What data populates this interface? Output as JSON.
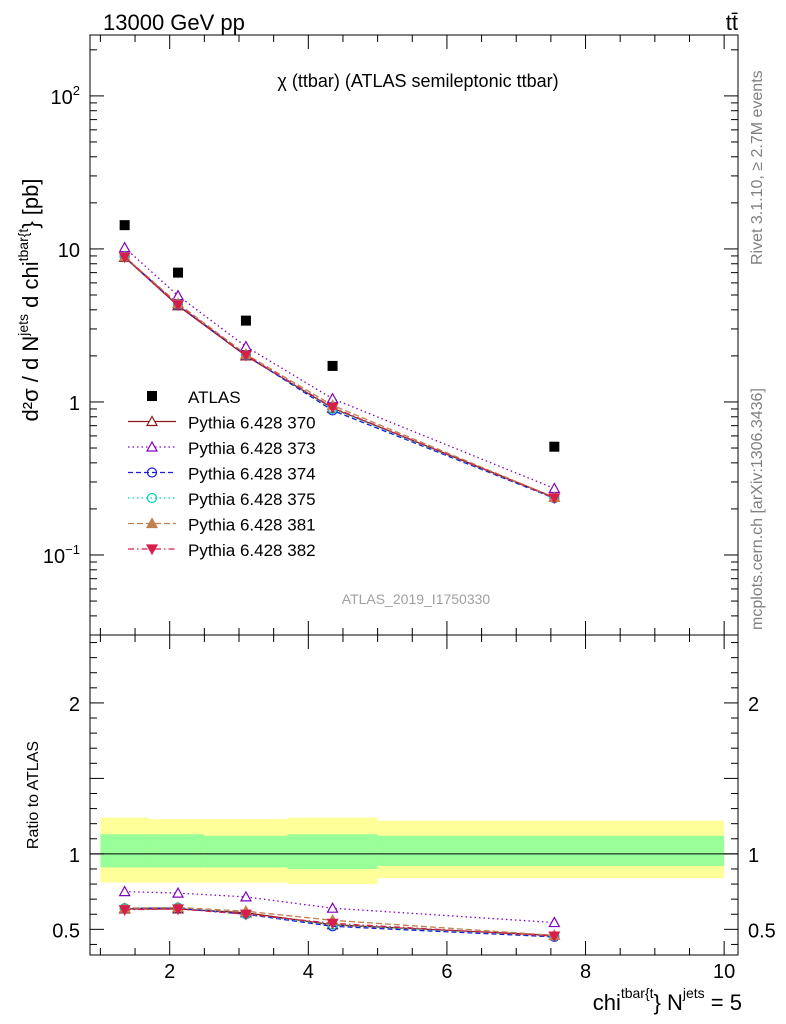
{
  "header": {
    "left": "13000 GeV pp",
    "right": "tt̄"
  },
  "side_text": {
    "rivet": "Rivet 3.1.10, ≥ 2.7M events",
    "mcplots": "mcplots.cern.ch [arXiv:1306.3436]"
  },
  "chart_data": [
    {
      "type": "line",
      "title": "χ (ttbar) (ATLAS semileptonic ttbar)",
      "watermark": "ATLAS_2019_I1750330",
      "ylabel": {
        "base": "d²σ / d N",
        "sup1": "jets",
        "mid": " d chi",
        "sup2": "tbar{t",
        "end": "} [pb]"
      },
      "xlabel": {
        "base": "chi",
        "sup1": "tbar{t",
        "mid": "} N",
        "sup2": "jets",
        "end": " = 5"
      },
      "yscale": "log",
      "xlim": [
        0.85,
        10.2
      ],
      "ylim": [
        0.03,
        250
      ],
      "yticks": [
        {
          "v": 0.1,
          "label": "10",
          "sup": "−1"
        },
        {
          "v": 1,
          "label": "1",
          "sup": ""
        },
        {
          "v": 10,
          "label": "10",
          "sup": ""
        },
        {
          "v": 100,
          "label": "10",
          "sup": "2"
        }
      ],
      "x": [
        1.35,
        2.12,
        3.1,
        4.35,
        7.55
      ],
      "data": {
        "name": "ATLAS",
        "values": [
          14.3,
          7.0,
          3.4,
          1.72,
          0.51
        ]
      },
      "series": [
        {
          "name": "Pythia 6.428 370",
          "color": "#8b1a1a",
          "dash": "",
          "marker": "triangle-up-open",
          "values": [
            8.8,
            4.25,
            2.0,
            0.91,
            0.238
          ]
        },
        {
          "name": "Pythia 6.428 373",
          "color": "#8000c0",
          "dash": "1.5,3",
          "marker": "triangle-up-open",
          "values": [
            10.2,
            4.95,
            2.3,
            1.05,
            0.272
          ]
        },
        {
          "name": "Pythia 6.428 374",
          "color": "#1a1adb",
          "dash": "5,3",
          "marker": "circle-open",
          "values": [
            8.9,
            4.3,
            2.02,
            0.88,
            0.235
          ]
        },
        {
          "name": "Pythia 6.428 375",
          "color": "#00d0c0",
          "dash": "1.5,3",
          "marker": "circle-open",
          "values": [
            8.9,
            4.35,
            2.03,
            0.9,
            0.236
          ]
        },
        {
          "name": "Pythia 6.428 381",
          "color": "#c08050",
          "dash": "6,3",
          "marker": "triangle-up-filled",
          "values": [
            8.9,
            4.4,
            2.05,
            0.95,
            0.238
          ]
        },
        {
          "name": "Pythia 6.428 382",
          "color": "#d81f4a",
          "dash": "6,3,1.5,3",
          "marker": "triangle-down-filled",
          "values": [
            8.85,
            4.3,
            2.02,
            0.92,
            0.236
          ]
        }
      ]
    },
    {
      "type": "line",
      "ylabel": "Ratio to ATLAS",
      "ylim": [
        0.33,
        2.45
      ],
      "xlim": [
        0.85,
        10.2
      ],
      "xticks": [
        2,
        4,
        6,
        8,
        10
      ],
      "yticks": [
        {
          "v": 0.5,
          "label": "0.5"
        },
        {
          "v": 1,
          "label": "1"
        },
        {
          "v": 2,
          "label": "2"
        }
      ],
      "bins": [
        {
          "lo": 1.0,
          "hi": 1.7,
          "inner": [
            0.91,
            1.13
          ],
          "outer": [
            0.81,
            1.24
          ]
        },
        {
          "lo": 1.7,
          "hi": 2.5,
          "inner": [
            0.91,
            1.13
          ],
          "outer": [
            0.81,
            1.23
          ]
        },
        {
          "lo": 2.5,
          "hi": 3.7,
          "inner": [
            0.91,
            1.12
          ],
          "outer": [
            0.81,
            1.23
          ]
        },
        {
          "lo": 3.7,
          "hi": 5.0,
          "inner": [
            0.9,
            1.13
          ],
          "outer": [
            0.8,
            1.24
          ]
        },
        {
          "lo": 5.0,
          "hi": 10.0,
          "inner": [
            0.92,
            1.12
          ],
          "outer": [
            0.84,
            1.22
          ]
        }
      ],
      "ratios": [
        [
          0.635,
          0.635,
          0.61,
          0.53,
          0.46
        ],
        [
          0.75,
          0.74,
          0.715,
          0.64,
          0.545
        ],
        [
          0.64,
          0.64,
          0.6,
          0.52,
          0.45
        ],
        [
          0.64,
          0.645,
          0.6,
          0.53,
          0.455
        ],
        [
          0.64,
          0.645,
          0.62,
          0.56,
          0.46
        ],
        [
          0.63,
          0.635,
          0.6,
          0.54,
          0.455
        ]
      ]
    }
  ]
}
